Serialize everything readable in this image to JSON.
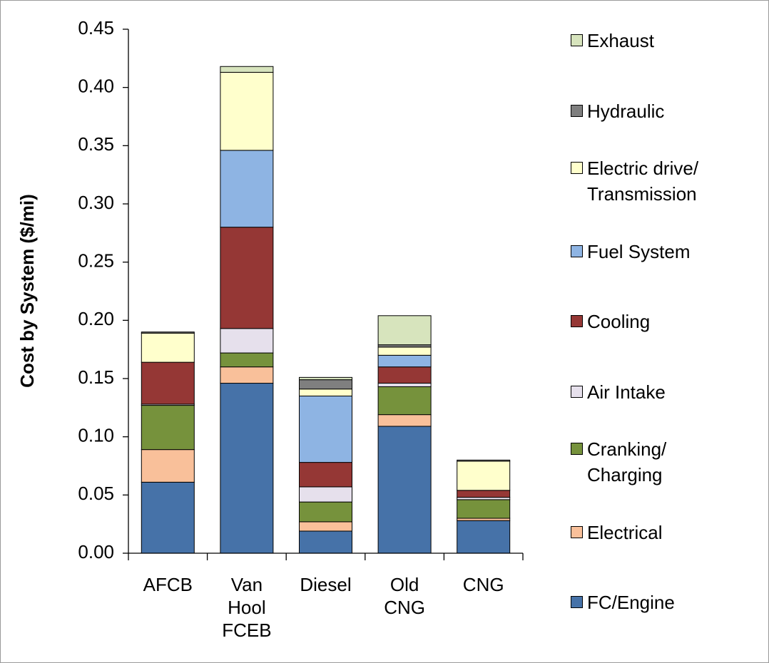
{
  "chart_data": {
    "type": "bar",
    "stacked": true,
    "y_label": "Cost by System ($/mi)",
    "categories": [
      "AFCB",
      "Van Hool FCEB",
      "Diesel",
      "Old CNG",
      "CNG"
    ],
    "series": [
      {
        "name": "FC/Engine",
        "color": "#4672a8",
        "values": [
          0.061,
          0.146,
          0.019,
          0.109,
          0.028
        ]
      },
      {
        "name": "Electrical",
        "color": "#f9c09a",
        "values": [
          0.028,
          0.014,
          0.008,
          0.01,
          0.002
        ]
      },
      {
        "name": "Cranking/ Charging",
        "color": "#76923c",
        "values": [
          0.038,
          0.012,
          0.017,
          0.024,
          0.016
        ]
      },
      {
        "name": "Air Intake",
        "color": "#e6e0ec",
        "values": [
          0.001,
          0.021,
          0.013,
          0.003,
          0.002
        ]
      },
      {
        "name": "Cooling",
        "color": "#953735",
        "values": [
          0.036,
          0.087,
          0.021,
          0.014,
          0.006
        ]
      },
      {
        "name": "Fuel System",
        "color": "#8eb4e3",
        "values": [
          0,
          0.066,
          0.057,
          0.01,
          0
        ]
      },
      {
        "name": "Electric drive/ Transmission",
        "color": "#ffffcc",
        "values": [
          0.025,
          0.067,
          0.006,
          0.007,
          0.025
        ]
      },
      {
        "name": "Hydraulic",
        "color": "#7f7f7f",
        "values": [
          0.001,
          0,
          0.008,
          0.002,
          0.001
        ]
      },
      {
        "name": "Exhaust",
        "color": "#d7e4bd",
        "values": [
          0,
          0.005,
          0.002,
          0.025,
          0
        ]
      }
    ],
    "ylim": [
      0,
      0.45
    ],
    "yticks": [
      {
        "value": 0,
        "label": "0.00"
      },
      0.05,
      {
        "value": 0.1,
        "label": "0.10"
      },
      0.15,
      {
        "value": 0.2,
        "label": "0.20"
      },
      0.25,
      {
        "value": 0.3,
        "label": "0.30"
      },
      0.35,
      {
        "value": 0.4,
        "label": "0.40"
      },
      0.45
    ],
    "legend": "right"
  }
}
